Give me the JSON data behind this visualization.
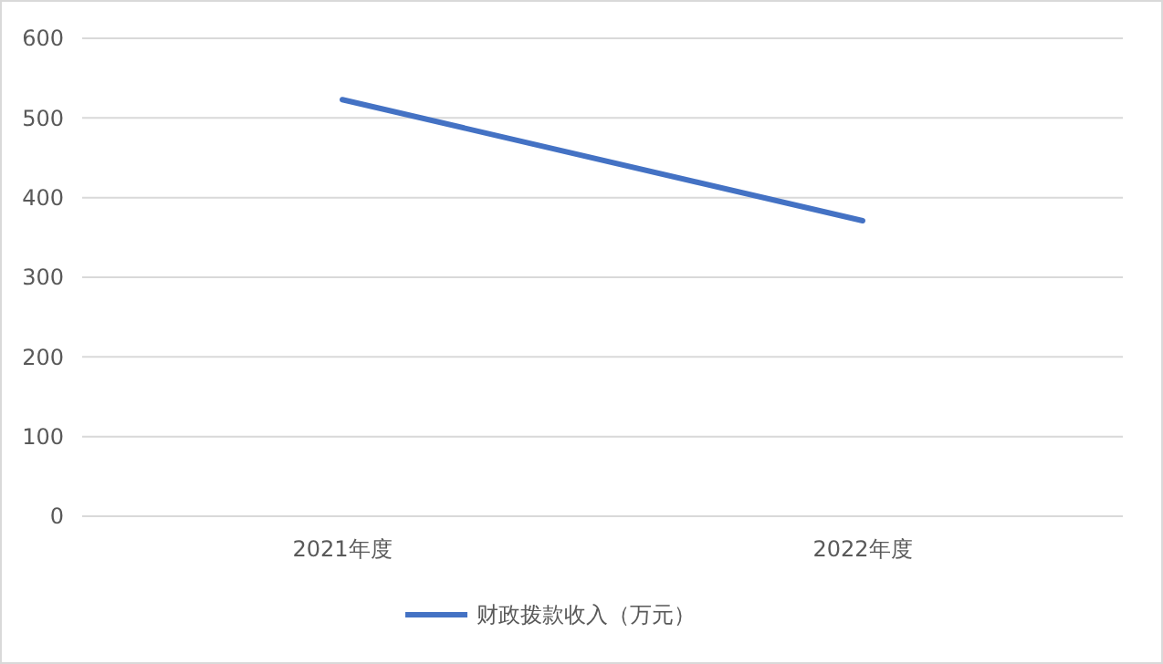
{
  "chart_data": {
    "type": "line",
    "categories": [
      "2021年度",
      "2022年度"
    ],
    "series": [
      {
        "name": "财政拨款收入（万元）",
        "color": "#4472c4",
        "values": [
          523,
          371
        ]
      }
    ],
    "ylim": [
      0,
      600
    ],
    "yticks": [
      0,
      100,
      200,
      300,
      400,
      500,
      600
    ],
    "grid": "y",
    "legend": "bottom",
    "marker": "none",
    "line_style": "solid"
  }
}
